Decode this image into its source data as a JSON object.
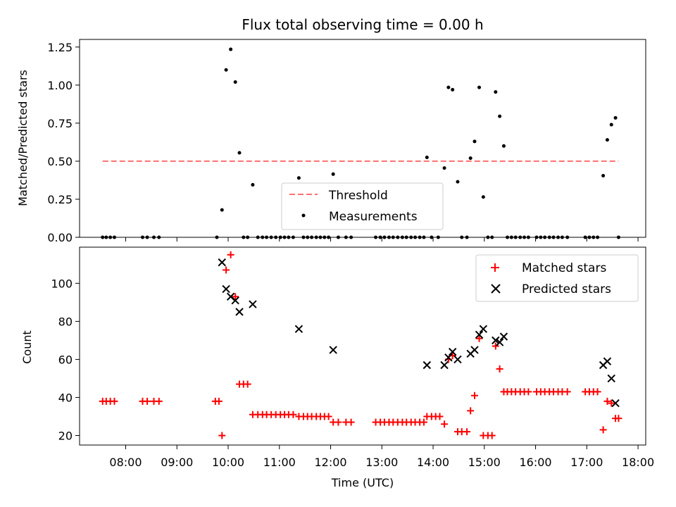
{
  "chart_data": [
    {
      "type": "scatter",
      "title": "Flux total observing time = 0.00 h",
      "xlabel": "",
      "ylabel": "Matched/Predicted stars",
      "xlim": [
        7.1,
        18.15
      ],
      "ylim": [
        0,
        1.3
      ],
      "yticks": [
        0,
        0.25,
        0.5,
        0.75,
        1.0,
        1.25
      ],
      "ytick_labels": [
        "0.00",
        "0.25",
        "0.50",
        "0.75",
        "1.00",
        "1.25"
      ],
      "legend": {
        "position": "bottom-center",
        "entries": [
          "Threshold",
          "Measurements"
        ]
      },
      "threshold": {
        "name": "Threshold",
        "y": 0.5,
        "x": [
          7.55,
          17.62
        ],
        "color": "#ff7070"
      },
      "series": [
        {
          "name": "Measurements",
          "color": "#000000",
          "points": [
            [
              7.55,
              0
            ],
            [
              7.62,
              0
            ],
            [
              7.7,
              0
            ],
            [
              7.78,
              0
            ],
            [
              8.33,
              0
            ],
            [
              8.42,
              0
            ],
            [
              8.55,
              0
            ],
            [
              8.65,
              0
            ],
            [
              9.78,
              0
            ],
            [
              9.88,
              0.18
            ],
            [
              9.96,
              1.1
            ],
            [
              10.05,
              1.235
            ],
            [
              10.14,
              1.02
            ],
            [
              10.22,
              0.555
            ],
            [
              10.3,
              0
            ],
            [
              10.38,
              0
            ],
            [
              10.48,
              0.345
            ],
            [
              10.58,
              0
            ],
            [
              10.67,
              0
            ],
            [
              10.75,
              0
            ],
            [
              10.84,
              0
            ],
            [
              10.93,
              0
            ],
            [
              11.02,
              0
            ],
            [
              11.1,
              0
            ],
            [
              11.18,
              0
            ],
            [
              11.27,
              0
            ],
            [
              11.38,
              0.39
            ],
            [
              11.47,
              0
            ],
            [
              11.55,
              0
            ],
            [
              11.63,
              0
            ],
            [
              11.72,
              0
            ],
            [
              11.8,
              0
            ],
            [
              11.88,
              0
            ],
            [
              11.96,
              0
            ],
            [
              12.05,
              0.415
            ],
            [
              12.15,
              0
            ],
            [
              12.3,
              0
            ],
            [
              12.4,
              0
            ],
            [
              12.88,
              0
            ],
            [
              12.97,
              0
            ],
            [
              13.05,
              0
            ],
            [
              13.14,
              0
            ],
            [
              13.22,
              0
            ],
            [
              13.31,
              0
            ],
            [
              13.4,
              0
            ],
            [
              13.48,
              0
            ],
            [
              13.57,
              0
            ],
            [
              13.65,
              0
            ],
            [
              13.74,
              0
            ],
            [
              13.82,
              0
            ],
            [
              13.88,
              0.525
            ],
            [
              13.97,
              0
            ],
            [
              14.1,
              0
            ],
            [
              14.22,
              0.455
            ],
            [
              14.3,
              0.985
            ],
            [
              14.38,
              0.97
            ],
            [
              14.48,
              0.365
            ],
            [
              14.56,
              0
            ],
            [
              14.66,
              0
            ],
            [
              14.73,
              0.52
            ],
            [
              14.81,
              0.63
            ],
            [
              14.9,
              0.985
            ],
            [
              14.98,
              0.265
            ],
            [
              15.07,
              0
            ],
            [
              15.15,
              0
            ],
            [
              15.22,
              0.955
            ],
            [
              15.3,
              0.795
            ],
            [
              15.38,
              0.6
            ],
            [
              15.45,
              0
            ],
            [
              15.53,
              0
            ],
            [
              15.61,
              0
            ],
            [
              15.7,
              0
            ],
            [
              15.78,
              0
            ],
            [
              15.86,
              0
            ],
            [
              16.02,
              0
            ],
            [
              16.1,
              0
            ],
            [
              16.18,
              0
            ],
            [
              16.27,
              0
            ],
            [
              16.35,
              0
            ],
            [
              16.44,
              0
            ],
            [
              16.52,
              0
            ],
            [
              16.62,
              0
            ],
            [
              16.97,
              0
            ],
            [
              17.05,
              0
            ],
            [
              17.13,
              0
            ],
            [
              17.21,
              0
            ],
            [
              17.32,
              0.405
            ],
            [
              17.4,
              0.64
            ],
            [
              17.48,
              0.74
            ],
            [
              17.56,
              0.785
            ],
            [
              17.62,
              0
            ]
          ]
        }
      ]
    },
    {
      "type": "scatter",
      "title": "",
      "xlabel": "Time (UTC)",
      "ylabel": "Count",
      "xlim": [
        7.1,
        18.15
      ],
      "ylim": [
        15,
        119
      ],
      "yticks": [
        20,
        40,
        60,
        80,
        100
      ],
      "xticks": [
        8,
        9,
        10,
        11,
        12,
        13,
        14,
        15,
        16,
        17,
        18
      ],
      "xtick_labels": [
        "08:00",
        "09:00",
        "10:00",
        "11:00",
        "12:00",
        "13:00",
        "14:00",
        "15:00",
        "16:00",
        "17:00",
        "18:00"
      ],
      "legend": {
        "position": "top-right",
        "entries": [
          "Matched stars",
          "Predicted stars"
        ]
      },
      "series": [
        {
          "name": "Matched stars",
          "marker": "plus",
          "color": "#ff0000",
          "points": [
            [
              7.55,
              38
            ],
            [
              7.62,
              38
            ],
            [
              7.7,
              38
            ],
            [
              7.78,
              38
            ],
            [
              8.33,
              38
            ],
            [
              8.42,
              38
            ],
            [
              8.55,
              38
            ],
            [
              8.65,
              38
            ],
            [
              9.75,
              38
            ],
            [
              9.82,
              38
            ],
            [
              9.88,
              20
            ],
            [
              9.96,
              107
            ],
            [
              10.05,
              115
            ],
            [
              10.14,
              93
            ],
            [
              10.22,
              47
            ],
            [
              10.3,
              47
            ],
            [
              10.38,
              47
            ],
            [
              10.48,
              31
            ],
            [
              10.58,
              31
            ],
            [
              10.67,
              31
            ],
            [
              10.75,
              31
            ],
            [
              10.84,
              31
            ],
            [
              10.93,
              31
            ],
            [
              11.02,
              31
            ],
            [
              11.1,
              31
            ],
            [
              11.18,
              31
            ],
            [
              11.27,
              31
            ],
            [
              11.38,
              30
            ],
            [
              11.47,
              30
            ],
            [
              11.55,
              30
            ],
            [
              11.63,
              30
            ],
            [
              11.72,
              30
            ],
            [
              11.8,
              30
            ],
            [
              11.88,
              30
            ],
            [
              11.96,
              30
            ],
            [
              12.05,
              27
            ],
            [
              12.15,
              27
            ],
            [
              12.3,
              27
            ],
            [
              12.4,
              27
            ],
            [
              12.88,
              27
            ],
            [
              12.97,
              27
            ],
            [
              13.05,
              27
            ],
            [
              13.14,
              27
            ],
            [
              13.22,
              27
            ],
            [
              13.31,
              27
            ],
            [
              13.4,
              27
            ],
            [
              13.48,
              27
            ],
            [
              13.57,
              27
            ],
            [
              13.65,
              27
            ],
            [
              13.74,
              27
            ],
            [
              13.82,
              27
            ],
            [
              13.88,
              30
            ],
            [
              13.97,
              30
            ],
            [
              14.05,
              30
            ],
            [
              14.13,
              30
            ],
            [
              14.22,
              26
            ],
            [
              14.3,
              60
            ],
            [
              14.38,
              62
            ],
            [
              14.48,
              22
            ],
            [
              14.56,
              22
            ],
            [
              14.66,
              22
            ],
            [
              14.73,
              33
            ],
            [
              14.81,
              41
            ],
            [
              14.9,
              71
            ],
            [
              14.98,
              20
            ],
            [
              15.07,
              20
            ],
            [
              15.15,
              20
            ],
            [
              15.22,
              67
            ],
            [
              15.3,
              55
            ],
            [
              15.38,
              43
            ],
            [
              15.45,
              43
            ],
            [
              15.53,
              43
            ],
            [
              15.61,
              43
            ],
            [
              15.7,
              43
            ],
            [
              15.78,
              43
            ],
            [
              15.86,
              43
            ],
            [
              16.02,
              43
            ],
            [
              16.1,
              43
            ],
            [
              16.18,
              43
            ],
            [
              16.27,
              43
            ],
            [
              16.35,
              43
            ],
            [
              16.44,
              43
            ],
            [
              16.52,
              43
            ],
            [
              16.62,
              43
            ],
            [
              16.97,
              43
            ],
            [
              17.05,
              43
            ],
            [
              17.13,
              43
            ],
            [
              17.21,
              43
            ],
            [
              17.32,
              23
            ],
            [
              17.4,
              38
            ],
            [
              17.48,
              37
            ],
            [
              17.56,
              29
            ],
            [
              17.62,
              29
            ]
          ]
        },
        {
          "name": "Predicted stars",
          "marker": "x",
          "color": "#000000",
          "points": [
            [
              9.88,
              111
            ],
            [
              9.96,
              97
            ],
            [
              10.05,
              93
            ],
            [
              10.14,
              91
            ],
            [
              10.22,
              85
            ],
            [
              10.48,
              89
            ],
            [
              11.38,
              76
            ],
            [
              12.05,
              65
            ],
            [
              13.88,
              57
            ],
            [
              14.22,
              57
            ],
            [
              14.3,
              61
            ],
            [
              14.38,
              64
            ],
            [
              14.48,
              60
            ],
            [
              14.73,
              63
            ],
            [
              14.81,
              65
            ],
            [
              14.9,
              73
            ],
            [
              14.98,
              76
            ],
            [
              15.22,
              70
            ],
            [
              15.3,
              69
            ],
            [
              15.38,
              72
            ],
            [
              17.32,
              57
            ],
            [
              17.4,
              59
            ],
            [
              17.48,
              50
            ],
            [
              17.56,
              37
            ]
          ]
        }
      ]
    }
  ]
}
